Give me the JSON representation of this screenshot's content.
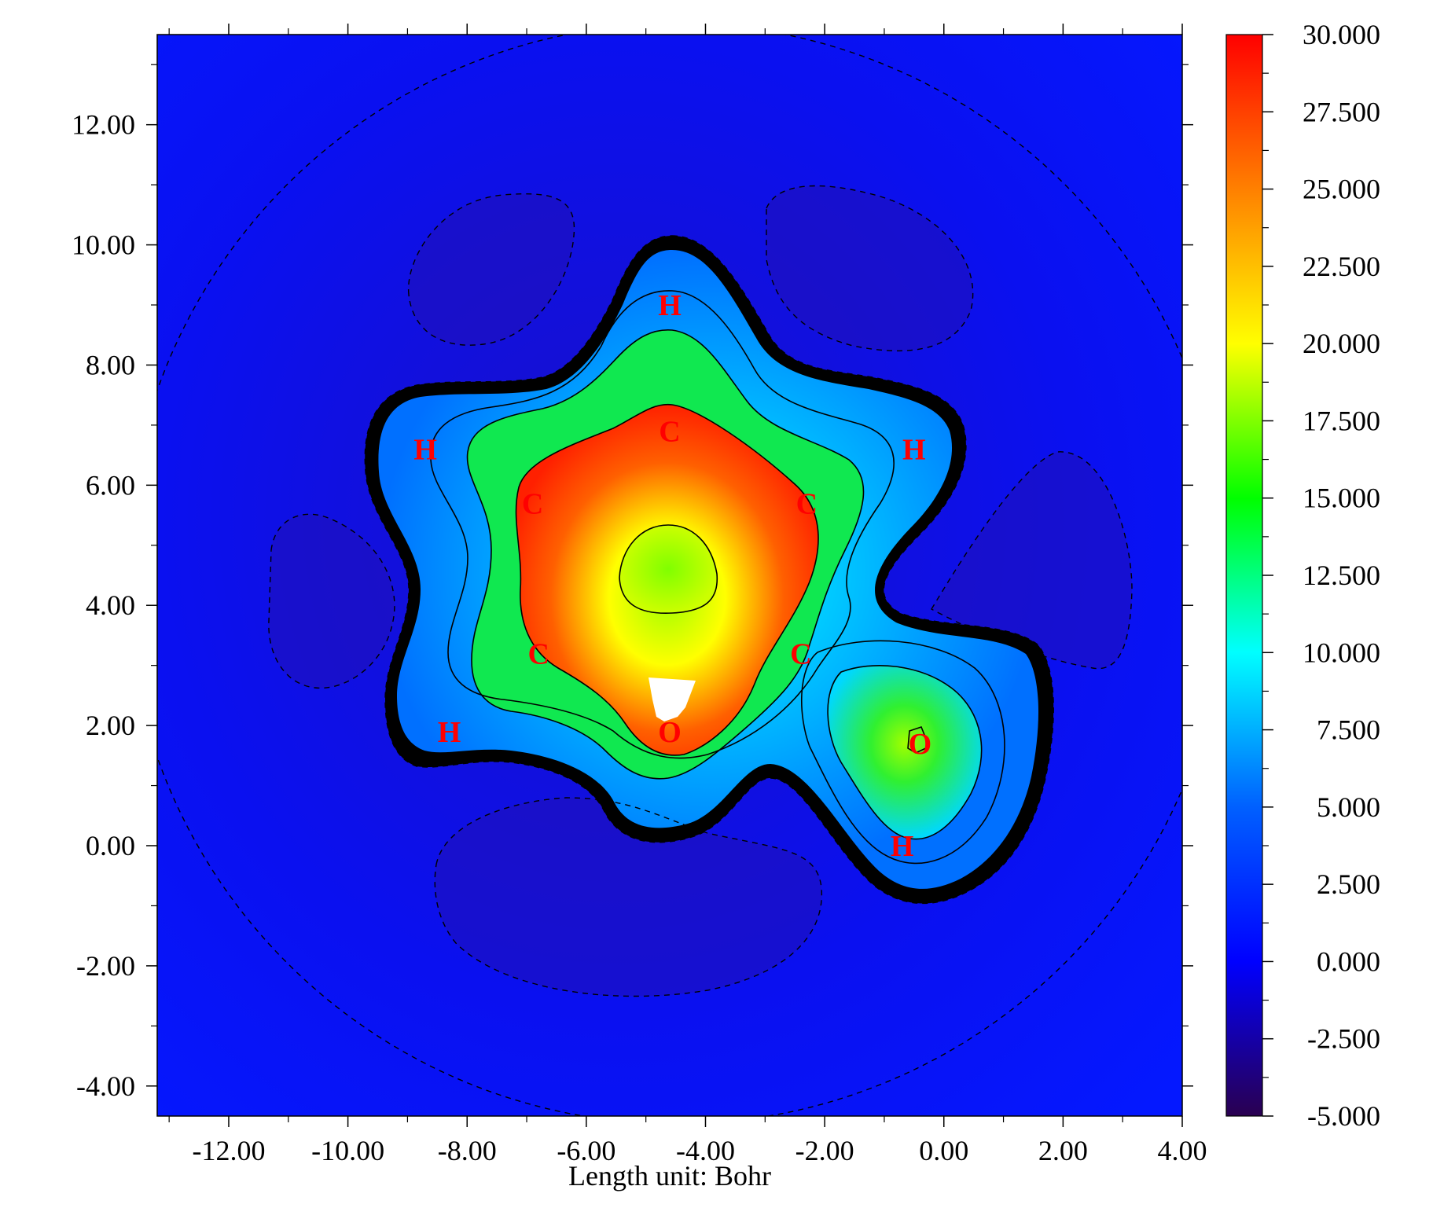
{
  "chart_data": {
    "type": "heatmap",
    "xlabel": "Length unit: Bohr",
    "xlim": [
      -13.2,
      4.0
    ],
    "ylim": [
      -4.5,
      13.5
    ],
    "x_ticks": [
      -12,
      -10,
      -8,
      -6,
      -4,
      -2,
      0,
      2,
      4
    ],
    "x_tick_labels": [
      "-12.00",
      "-10.00",
      "-8.00",
      "-6.00",
      "-4.00",
      "-2.00",
      "0.00",
      "2.00",
      "4.00"
    ],
    "y_ticks": [
      -4,
      -2,
      0,
      2,
      4,
      6,
      8,
      10,
      12
    ],
    "y_tick_labels": [
      "-4.00",
      "-2.00",
      "0.00",
      "2.00",
      "4.00",
      "6.00",
      "8.00",
      "10.00",
      "12.00"
    ],
    "colorbar": {
      "range": [
        -5.0,
        30.0
      ],
      "ticks": [
        30,
        27.5,
        25,
        22.5,
        20,
        17.5,
        15,
        12.5,
        10,
        7.5,
        5,
        2.5,
        0,
        -2.5,
        -5
      ],
      "tick_labels": [
        "30.000",
        "27.500",
        "25.000",
        "22.500",
        "20.000",
        "17.500",
        "15.000",
        "12.500",
        "10.000",
        "7.500",
        "5.000",
        "2.500",
        "0.000",
        "-2.500",
        "-5.000"
      ],
      "colors": [
        "#2a0050",
        "#0000ff",
        "#00ffff",
        "#00ff00",
        "#ffff00",
        "#ff8000",
        "#ff0000"
      ]
    },
    "atoms": [
      {
        "label": "H",
        "x": -4.6,
        "y": 9.0
      },
      {
        "label": "C",
        "x": -4.6,
        "y": 6.9
      },
      {
        "label": "H",
        "x": -8.7,
        "y": 6.6
      },
      {
        "label": "H",
        "x": -0.5,
        "y": 6.6
      },
      {
        "label": "C",
        "x": -6.9,
        "y": 5.7
      },
      {
        "label": "C",
        "x": -2.3,
        "y": 5.7
      },
      {
        "label": "C",
        "x": -6.8,
        "y": 3.2
      },
      {
        "label": "C",
        "x": -2.4,
        "y": 3.2
      },
      {
        "label": "H",
        "x": -8.3,
        "y": 1.9
      },
      {
        "label": "O",
        "x": -4.6,
        "y": 1.9
      },
      {
        "label": "O",
        "x": -0.4,
        "y": 1.7
      },
      {
        "label": "H",
        "x": -0.7,
        "y": 0.0
      }
    ],
    "grid": false
  }
}
